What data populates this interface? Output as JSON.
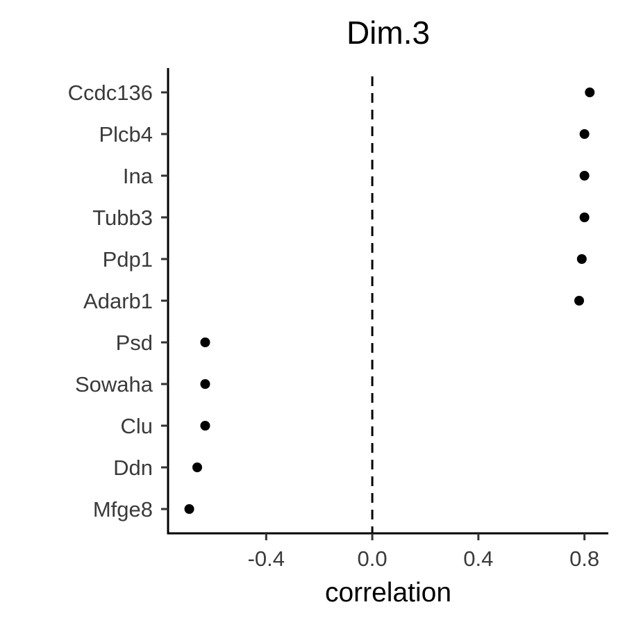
{
  "chart_data": {
    "type": "scatter",
    "title": "Dim.3",
    "xlabel": "correlation",
    "ylabel": "",
    "xlim": [
      -0.77,
      0.89
    ],
    "xticks": [
      -0.4,
      0.0,
      0.4,
      0.8
    ],
    "xtick_labels": [
      "-0.4",
      "0.0",
      "0.4",
      "0.8"
    ],
    "reference_line_x": 0.0,
    "grid": false,
    "legend": "none",
    "point_color": "#000000",
    "categories": [
      "Ccdc136",
      "Plcb4",
      "Ina",
      "Tubb3",
      "Pdp1",
      "Adarb1",
      "Psd",
      "Sowaha",
      "Clu",
      "Ddn",
      "Mfge8"
    ],
    "values": [
      0.82,
      0.8,
      0.8,
      0.8,
      0.79,
      0.78,
      -0.63,
      -0.63,
      -0.63,
      -0.66,
      -0.69
    ]
  }
}
